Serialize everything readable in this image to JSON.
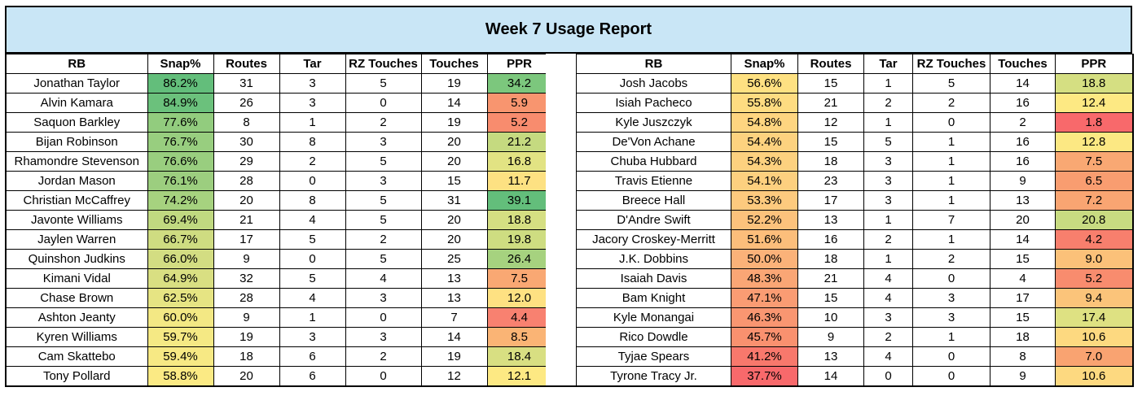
{
  "title": "Week 7 Usage Report",
  "columns": [
    "RB",
    "Snap%",
    "Routes",
    "Tar",
    "RZ Touches",
    "Touches",
    "PPR"
  ],
  "left_rows": [
    {
      "rb": "Jonathan Taylor",
      "snap": "86.2%",
      "routes": "31",
      "tar": "3",
      "rz": "5",
      "touches": "19",
      "ppr": "34.2",
      "snap_color": "#63be7b",
      "ppr_color": "#7cc77d"
    },
    {
      "rb": "Alvin Kamara",
      "snap": "84.9%",
      "routes": "26",
      "tar": "3",
      "rz": "0",
      "touches": "14",
      "ppr": "5.9",
      "snap_color": "#6bc17c",
      "ppr_color": "#f8956f"
    },
    {
      "rb": "Saquon Barkley",
      "snap": "77.6%",
      "routes": "8",
      "tar": "1",
      "rz": "2",
      "touches": "19",
      "ppr": "5.2",
      "snap_color": "#92cc7e",
      "ppr_color": "#f88c6e"
    },
    {
      "rb": "Bijan Robinson",
      "snap": "76.7%",
      "routes": "30",
      "tar": "8",
      "rz": "3",
      "touches": "20",
      "ppr": "21.2",
      "snap_color": "#98ce7f",
      "ppr_color": "#c5da80"
    },
    {
      "rb": "Rhamondre Stevenson",
      "snap": "76.6%",
      "routes": "29",
      "tar": "2",
      "rz": "5",
      "touches": "20",
      "ppr": "16.8",
      "snap_color": "#99ce7f",
      "ppr_color": "#e2e383"
    },
    {
      "rb": "Jordan Mason",
      "snap": "76.1%",
      "routes": "28",
      "tar": "0",
      "rz": "3",
      "touches": "15",
      "ppr": "11.7",
      "snap_color": "#9cce7f",
      "ppr_color": "#fde182"
    },
    {
      "rb": "Christian McCaffrey",
      "snap": "74.2%",
      "routes": "20",
      "tar": "8",
      "rz": "5",
      "touches": "31",
      "ppr": "39.1",
      "snap_color": "#a6d27f",
      "ppr_color": "#63be7b"
    },
    {
      "rb": "Javonte Williams",
      "snap": "69.4%",
      "routes": "21",
      "tar": "4",
      "rz": "5",
      "touches": "20",
      "ppr": "18.8",
      "snap_color": "#c0d980",
      "ppr_color": "#d5df82"
    },
    {
      "rb": "Jaylen Warren",
      "snap": "66.7%",
      "routes": "17",
      "tar": "5",
      "rz": "2",
      "touches": "20",
      "ppr": "19.8",
      "snap_color": "#cfdc81",
      "ppr_color": "#cedd81"
    },
    {
      "rb": "Quinshon Judkins",
      "snap": "66.0%",
      "routes": "9",
      "tar": "0",
      "rz": "5",
      "touches": "25",
      "ppr": "26.4",
      "snap_color": "#d3dd82",
      "ppr_color": "#a6d27f"
    },
    {
      "rb": "Kimani Vidal",
      "snap": "64.9%",
      "routes": "32",
      "tar": "5",
      "rz": "4",
      "touches": "13",
      "ppr": "7.5",
      "snap_color": "#d9df82",
      "ppr_color": "#f9a873"
    },
    {
      "rb": "Chase Brown",
      "snap": "62.5%",
      "routes": "28",
      "tar": "4",
      "rz": "3",
      "touches": "13",
      "ppr": "12.0",
      "snap_color": "#e6e483",
      "ppr_color": "#fee182"
    },
    {
      "rb": "Ashton Jeanty",
      "snap": "60.0%",
      "routes": "9",
      "tar": "1",
      "rz": "0",
      "touches": "7",
      "ppr": "4.4",
      "snap_color": "#f3e884",
      "ppr_color": "#f88170"
    },
    {
      "rb": "Kyren Williams",
      "snap": "59.7%",
      "routes": "19",
      "tar": "3",
      "rz": "3",
      "touches": "14",
      "ppr": "8.5",
      "snap_color": "#f5e984",
      "ppr_color": "#fab475"
    },
    {
      "rb": "Cam Skattebo",
      "snap": "59.4%",
      "routes": "18",
      "tar": "6",
      "rz": "2",
      "touches": "19",
      "ppr": "18.4",
      "snap_color": "#f7e984",
      "ppr_color": "#d8df82"
    },
    {
      "rb": "Tony Pollard",
      "snap": "58.8%",
      "routes": "20",
      "tar": "6",
      "rz": "0",
      "touches": "12",
      "ppr": "12.1",
      "snap_color": "#fbea84",
      "ppr_color": "#fde983"
    }
  ],
  "right_rows": [
    {
      "rb": "Josh Jacobs",
      "snap": "56.6%",
      "routes": "15",
      "tar": "1",
      "rz": "5",
      "touches": "14",
      "ppr": "18.8",
      "snap_color": "#fee182",
      "ppr_color": "#d5df82"
    },
    {
      "rb": "Isiah Pacheco",
      "snap": "55.8%",
      "routes": "21",
      "tar": "2",
      "rz": "2",
      "touches": "16",
      "ppr": "12.4",
      "snap_color": "#fedc81",
      "ppr_color": "#fde983"
    },
    {
      "rb": "Kyle Juszczyk",
      "snap": "54.8%",
      "routes": "12",
      "tar": "1",
      "rz": "0",
      "touches": "2",
      "ppr": "1.8",
      "snap_color": "#fed580",
      "ppr_color": "#f8696b"
    },
    {
      "rb": "De'Von Achane",
      "snap": "54.4%",
      "routes": "15",
      "tar": "5",
      "rz": "1",
      "touches": "16",
      "ppr": "12.8",
      "snap_color": "#fdd27f",
      "ppr_color": "#fce883"
    },
    {
      "rb": "Chuba Hubbard",
      "snap": "54.3%",
      "routes": "18",
      "tar": "3",
      "rz": "1",
      "touches": "16",
      "ppr": "7.5",
      "snap_color": "#fdd17f",
      "ppr_color": "#f9a873"
    },
    {
      "rb": "Travis Etienne",
      "snap": "54.1%",
      "routes": "23",
      "tar": "3",
      "rz": "1",
      "touches": "9",
      "ppr": "6.5",
      "snap_color": "#fdd07f",
      "ppr_color": "#f99d70"
    },
    {
      "rb": "Breece Hall",
      "snap": "53.3%",
      "routes": "17",
      "tar": "3",
      "rz": "1",
      "touches": "13",
      "ppr": "7.2",
      "snap_color": "#fdca7e",
      "ppr_color": "#f9a572"
    },
    {
      "rb": "D'Andre Swift",
      "snap": "52.2%",
      "routes": "13",
      "tar": "1",
      "rz": "7",
      "touches": "20",
      "ppr": "20.8",
      "snap_color": "#fcc27c",
      "ppr_color": "#c8db81"
    },
    {
      "rb": "Jacory Croskey-Merritt",
      "snap": "51.6%",
      "routes": "16",
      "tar": "2",
      "rz": "1",
      "touches": "14",
      "ppr": "4.2",
      "snap_color": "#fcbe7b",
      "ppr_color": "#f87f6d"
    },
    {
      "rb": "J.K. Dobbins",
      "snap": "50.0%",
      "routes": "18",
      "tar": "1",
      "rz": "2",
      "touches": "15",
      "ppr": "9.0",
      "snap_color": "#fbb279",
      "ppr_color": "#fbc179"
    },
    {
      "rb": "Isaiah Davis",
      "snap": "48.3%",
      "routes": "21",
      "tar": "4",
      "rz": "0",
      "touches": "4",
      "ppr": "5.2",
      "snap_color": "#faa675",
      "ppr_color": "#f88c6e"
    },
    {
      "rb": "Bam Knight",
      "snap": "47.1%",
      "routes": "15",
      "tar": "4",
      "rz": "3",
      "touches": "17",
      "ppr": "9.4",
      "snap_color": "#fa9c73",
      "ppr_color": "#fbc47a"
    },
    {
      "rb": "Kyle Monangai",
      "snap": "46.3%",
      "routes": "10",
      "tar": "3",
      "rz": "3",
      "touches": "15",
      "ppr": "17.4",
      "snap_color": "#f99671",
      "ppr_color": "#dee182"
    },
    {
      "rb": "Rico Dowdle",
      "snap": "45.7%",
      "routes": "9",
      "tar": "2",
      "rz": "1",
      "touches": "18",
      "ppr": "10.6",
      "snap_color": "#f9916f",
      "ppr_color": "#fdd980"
    },
    {
      "rb": "Tyjae Spears",
      "snap": "41.2%",
      "routes": "13",
      "tar": "4",
      "rz": "0",
      "touches": "8",
      "ppr": "7.0",
      "snap_color": "#f8786c",
      "ppr_color": "#f9a371"
    },
    {
      "rb": "Tyrone Tracy Jr.",
      "snap": "37.7%",
      "routes": "14",
      "tar": "0",
      "rz": "0",
      "touches": "9",
      "ppr": "10.6",
      "snap_color": "#f8696b",
      "ppr_color": "#fdd980"
    }
  ]
}
